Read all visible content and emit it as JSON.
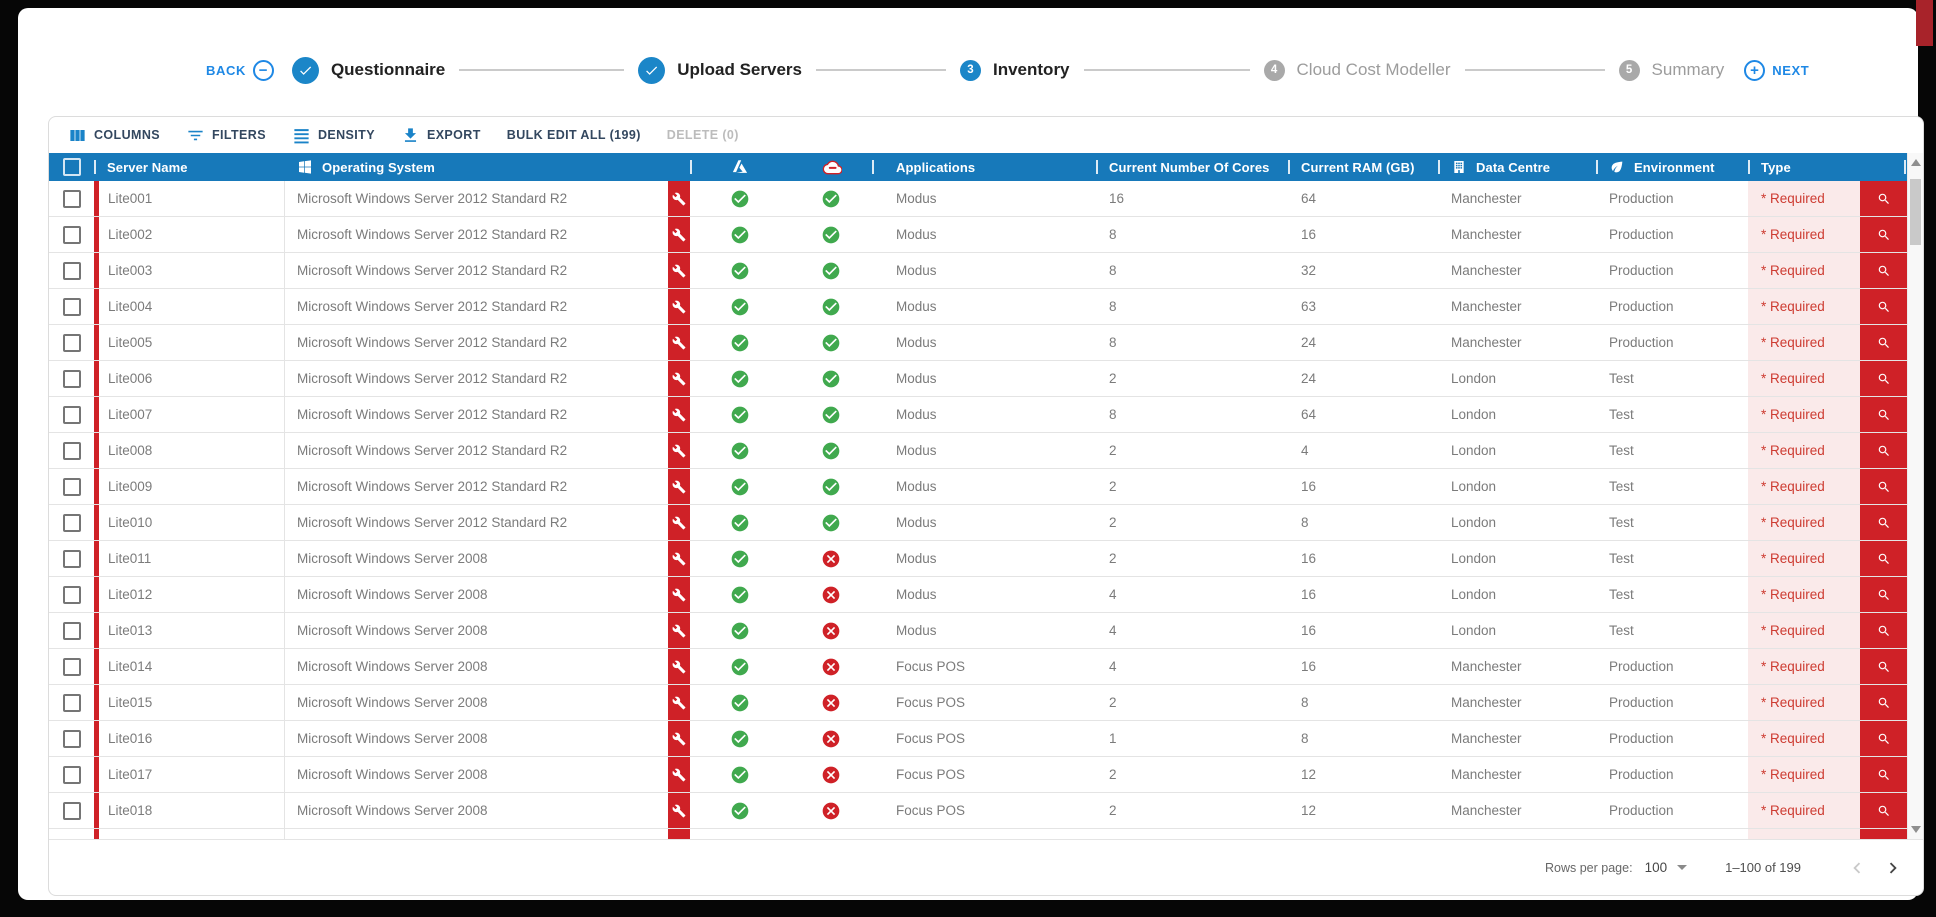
{
  "colors": {
    "header_blue": "#1779ba",
    "stepper_blue": "#1b86c8",
    "link_blue": "#1e88e5",
    "toolbar_icon_blue": "#1a83c8",
    "alert_red": "#cf2127",
    "required_pink": "#faeaea",
    "required_text_red": "#cd3b31",
    "success_green": "#40a94e",
    "pending_gray": "#a9a9a9"
  },
  "stepper": {
    "back_label": "BACK",
    "back_icon_glyph": "−",
    "next_label": "NEXT",
    "next_icon_glyph": "+",
    "steps": [
      {
        "label": "Questionnaire",
        "state": "complete"
      },
      {
        "label": "Upload Servers",
        "state": "complete"
      },
      {
        "label": "Inventory",
        "number": "3",
        "state": "active"
      },
      {
        "label": "Cloud Cost Modeller",
        "number": "4",
        "state": "pending"
      },
      {
        "label": "Summary",
        "number": "5",
        "state": "pending"
      }
    ]
  },
  "toolbar": {
    "buttons": [
      {
        "label": "COLUMNS",
        "icon": "columns-icon",
        "disabled": false
      },
      {
        "label": "FILTERS",
        "icon": "filter-icon",
        "disabled": false
      },
      {
        "label": "DENSITY",
        "icon": "density-icon",
        "disabled": false
      },
      {
        "label": "EXPORT",
        "icon": "export-icon",
        "disabled": false
      },
      {
        "label": "BULK EDIT ALL (199)",
        "icon": null,
        "disabled": false
      },
      {
        "label": "DELETE (0)",
        "icon": null,
        "disabled": true
      }
    ]
  },
  "table": {
    "headers": {
      "server_name": "Server Name",
      "operating_system": "Operating System",
      "applications": "Applications",
      "cores": "Current Number Of Cores",
      "ram": "Current RAM (GB)",
      "data_centre": "Data Centre",
      "environment": "Environment",
      "type": "Type"
    },
    "required_label": "* Required",
    "rows": [
      {
        "name": "Lite001",
        "os": "Microsoft Windows Server 2012 Standard R2",
        "application": "Modus",
        "cores": 16,
        "ram": 64,
        "data_centre": "Manchester",
        "environment": "Production",
        "azure_ready": true,
        "cloud_ready": true
      },
      {
        "name": "Lite002",
        "os": "Microsoft Windows Server 2012 Standard R2",
        "application": "Modus",
        "cores": 8,
        "ram": 16,
        "data_centre": "Manchester",
        "environment": "Production",
        "azure_ready": true,
        "cloud_ready": true
      },
      {
        "name": "Lite003",
        "os": "Microsoft Windows Server 2012 Standard R2",
        "application": "Modus",
        "cores": 8,
        "ram": 32,
        "data_centre": "Manchester",
        "environment": "Production",
        "azure_ready": true,
        "cloud_ready": true
      },
      {
        "name": "Lite004",
        "os": "Microsoft Windows Server 2012 Standard R2",
        "application": "Modus",
        "cores": 8,
        "ram": 63,
        "data_centre": "Manchester",
        "environment": "Production",
        "azure_ready": true,
        "cloud_ready": true
      },
      {
        "name": "Lite005",
        "os": "Microsoft Windows Server 2012 Standard R2",
        "application": "Modus",
        "cores": 8,
        "ram": 24,
        "data_centre": "Manchester",
        "environment": "Production",
        "azure_ready": true,
        "cloud_ready": true
      },
      {
        "name": "Lite006",
        "os": "Microsoft Windows Server 2012 Standard R2",
        "application": "Modus",
        "cores": 2,
        "ram": 24,
        "data_centre": "London",
        "environment": "Test",
        "azure_ready": true,
        "cloud_ready": true
      },
      {
        "name": "Lite007",
        "os": "Microsoft Windows Server 2012 Standard R2",
        "application": "Modus",
        "cores": 8,
        "ram": 64,
        "data_centre": "London",
        "environment": "Test",
        "azure_ready": true,
        "cloud_ready": true
      },
      {
        "name": "Lite008",
        "os": "Microsoft Windows Server 2012 Standard R2",
        "application": "Modus",
        "cores": 2,
        "ram": 4,
        "data_centre": "London",
        "environment": "Test",
        "azure_ready": true,
        "cloud_ready": true
      },
      {
        "name": "Lite009",
        "os": "Microsoft Windows Server 2012 Standard R2",
        "application": "Modus",
        "cores": 2,
        "ram": 16,
        "data_centre": "London",
        "environment": "Test",
        "azure_ready": true,
        "cloud_ready": true
      },
      {
        "name": "Lite010",
        "os": "Microsoft Windows Server 2012 Standard R2",
        "application": "Modus",
        "cores": 2,
        "ram": 8,
        "data_centre": "London",
        "environment": "Test",
        "azure_ready": true,
        "cloud_ready": true
      },
      {
        "name": "Lite011",
        "os": "Microsoft Windows Server 2008",
        "application": "Modus",
        "cores": 2,
        "ram": 16,
        "data_centre": "London",
        "environment": "Test",
        "azure_ready": true,
        "cloud_ready": false
      },
      {
        "name": "Lite012",
        "os": "Microsoft Windows Server 2008",
        "application": "Modus",
        "cores": 4,
        "ram": 16,
        "data_centre": "London",
        "environment": "Test",
        "azure_ready": true,
        "cloud_ready": false
      },
      {
        "name": "Lite013",
        "os": "Microsoft Windows Server 2008",
        "application": "Modus",
        "cores": 4,
        "ram": 16,
        "data_centre": "London",
        "environment": "Test",
        "azure_ready": true,
        "cloud_ready": false
      },
      {
        "name": "Lite014",
        "os": "Microsoft Windows Server 2008",
        "application": "Focus POS",
        "cores": 4,
        "ram": 16,
        "data_centre": "Manchester",
        "environment": "Production",
        "azure_ready": true,
        "cloud_ready": false
      },
      {
        "name": "Lite015",
        "os": "Microsoft Windows Server 2008",
        "application": "Focus POS",
        "cores": 2,
        "ram": 8,
        "data_centre": "Manchester",
        "environment": "Production",
        "azure_ready": true,
        "cloud_ready": false
      },
      {
        "name": "Lite016",
        "os": "Microsoft Windows Server 2008",
        "application": "Focus POS",
        "cores": 1,
        "ram": 8,
        "data_centre": "Manchester",
        "environment": "Production",
        "azure_ready": true,
        "cloud_ready": false
      },
      {
        "name": "Lite017",
        "os": "Microsoft Windows Server 2008",
        "application": "Focus POS",
        "cores": 2,
        "ram": 12,
        "data_centre": "Manchester",
        "environment": "Production",
        "azure_ready": true,
        "cloud_ready": false
      },
      {
        "name": "Lite018",
        "os": "Microsoft Windows Server 2008",
        "application": "Focus POS",
        "cores": 2,
        "ram": 12,
        "data_centre": "Manchester",
        "environment": "Production",
        "azure_ready": true,
        "cloud_ready": false
      }
    ]
  },
  "pagination": {
    "rows_per_page_label": "Rows per page:",
    "rows_per_page_value": "100",
    "range": "1–100 of 199"
  }
}
